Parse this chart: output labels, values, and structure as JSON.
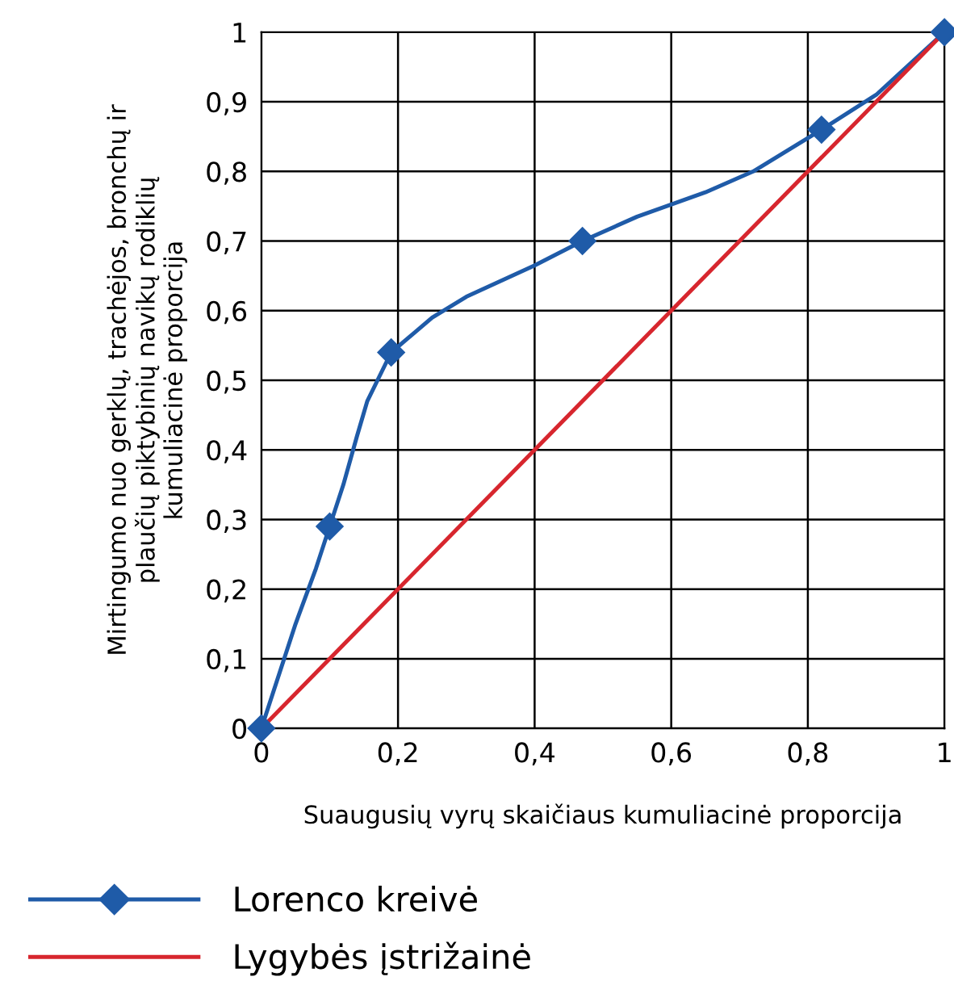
{
  "chart_data": {
    "type": "line",
    "xlabel": "Suaugusių vyrų skaičiaus kumuliacinė proporcija",
    "ylabel": "Mirtingumo nuo gerklų, trachėjos, bronchų ir\nplaučių piktybinių navikų rodiklių\nkumuliacinė proporcija",
    "series": [
      {
        "name": "Lorenco kreivė",
        "color": "#1f5ba8",
        "marker": "none",
        "x": [
          0,
          0.05,
          0.08,
          0.1,
          0.12,
          0.14,
          0.155,
          0.17,
          0.19,
          0.25,
          0.3,
          0.4,
          0.47,
          0.55,
          0.65,
          0.72,
          0.82,
          0.9,
          1
        ],
        "values": [
          0,
          0.15,
          0.23,
          0.29,
          0.35,
          0.42,
          0.47,
          0.5,
          0.54,
          0.59,
          0.62,
          0.665,
          0.7,
          0.735,
          0.77,
          0.8,
          0.86,
          0.91,
          1
        ]
      },
      {
        "type": "scatter",
        "color": "#1f5ba8",
        "marker": "diamond",
        "x": [
          0,
          0.1,
          0.19,
          0.47,
          0.82,
          1
        ],
        "values": [
          0,
          0.29,
          0.54,
          0.7,
          0.86,
          1
        ]
      },
      {
        "name": "Lygybės įstrižainė",
        "color": "#d7262e",
        "marker": "none",
        "x": [
          0,
          1
        ],
        "values": [
          0,
          1
        ]
      }
    ],
    "xlim": [
      0,
      1
    ],
    "ylim": [
      0,
      1
    ],
    "xticks": [
      0,
      {
        "value": 0.2,
        "label": "0,2"
      },
      {
        "value": 0.4,
        "label": "0,4"
      },
      {
        "value": 0.6,
        "label": "0,6"
      },
      {
        "value": 0.8,
        "label": "0,8"
      },
      1
    ],
    "yticks": [
      0,
      {
        "value": 0.1,
        "label": "0,1"
      },
      {
        "value": 0.2,
        "label": "0,2"
      },
      {
        "value": 0.3,
        "label": "0,3"
      },
      {
        "value": 0.4,
        "label": "0,4"
      },
      {
        "value": 0.5,
        "label": "0,5"
      },
      {
        "value": 0.6,
        "label": "0,6"
      },
      {
        "value": 0.7,
        "label": "0,7"
      },
      {
        "value": 0.8,
        "label": "0,8"
      },
      {
        "value": 0.9,
        "label": "0,9"
      },
      1
    ],
    "grid": true,
    "legend": "bottom left",
    "line_style": "solid"
  }
}
